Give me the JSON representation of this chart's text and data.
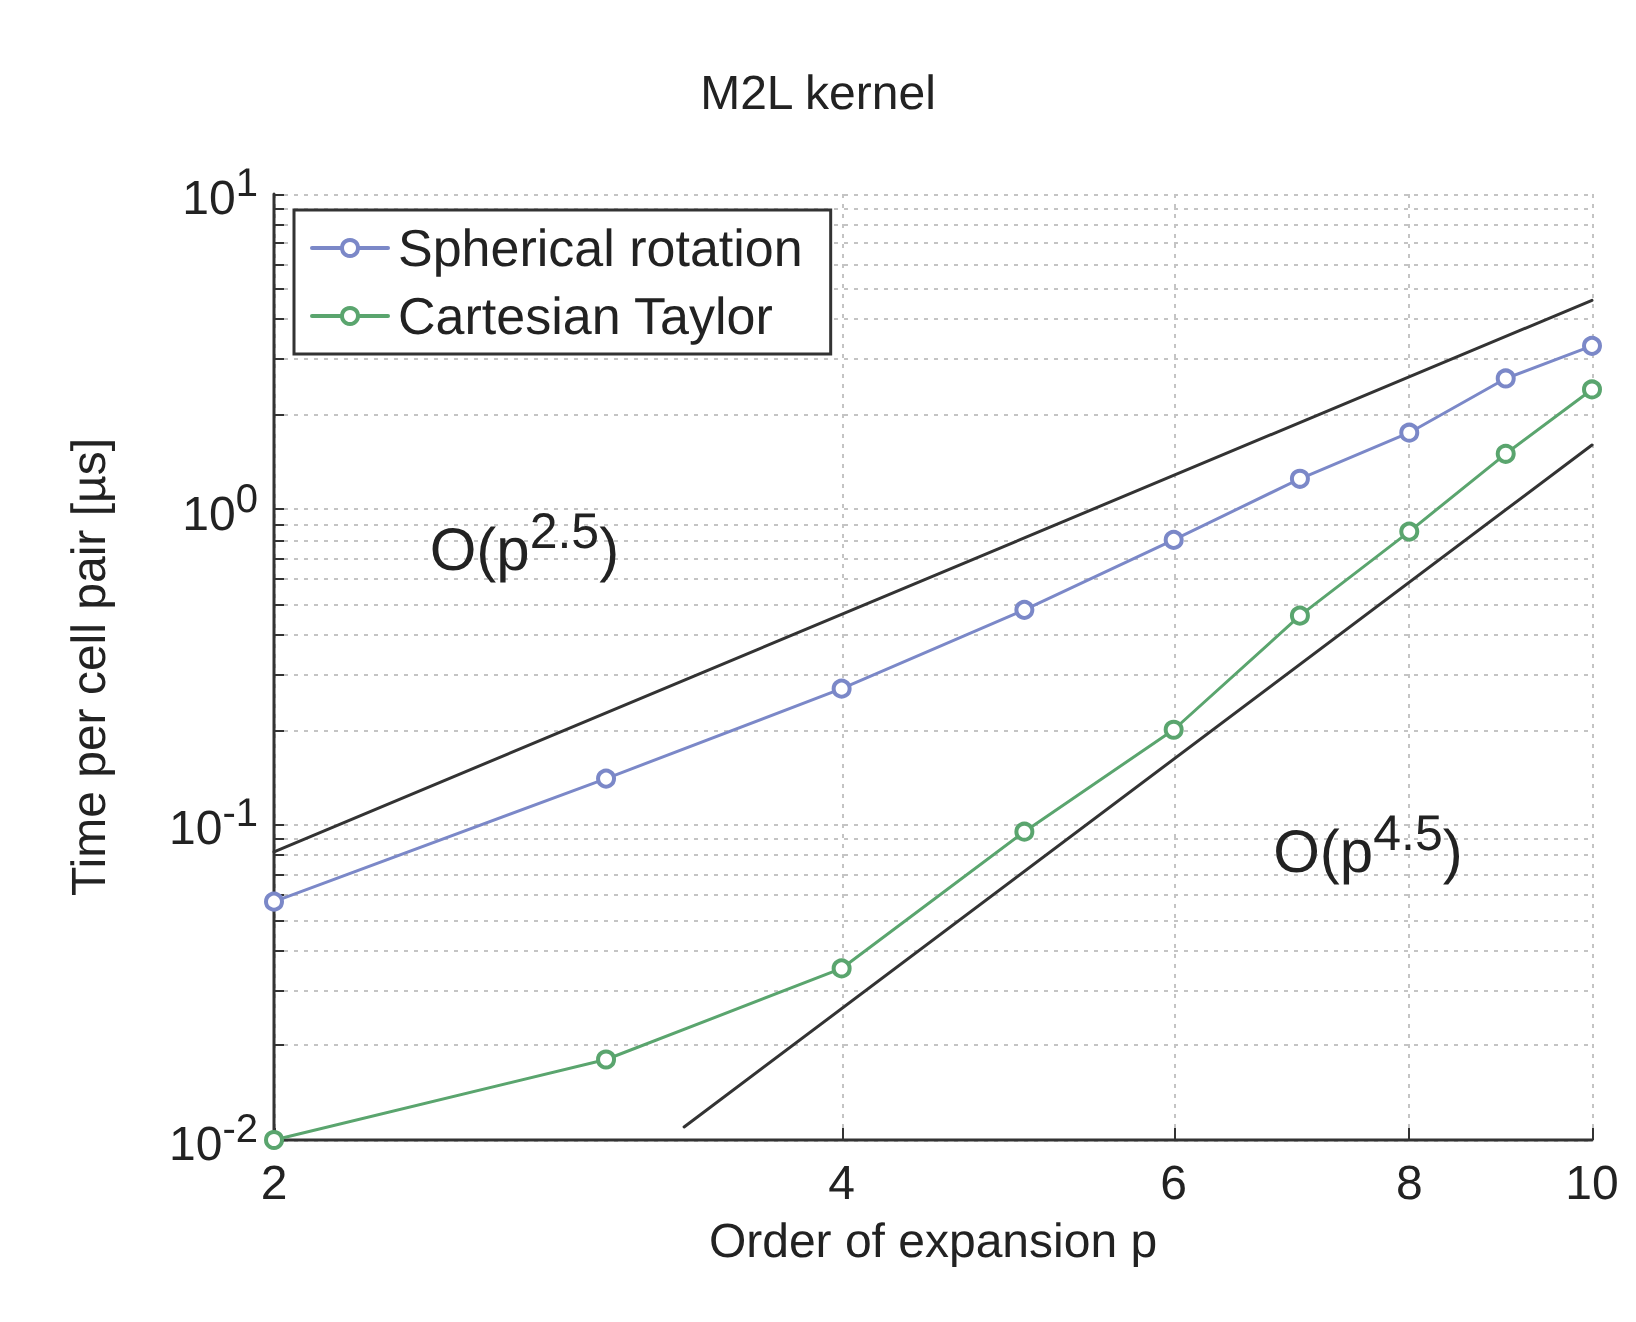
{
  "chart_data": {
    "type": "line",
    "title": "M2L kernel",
    "xlabel": "Order of expansion p",
    "ylabel": "Time per cell pair [µs]",
    "x": [
      2,
      3,
      4,
      5,
      6,
      7,
      8,
      9,
      10
    ],
    "series": [
      {
        "name": "Spherical rotation",
        "color": "#7b88c8",
        "values": [
          0.057,
          0.14,
          0.27,
          0.48,
          0.8,
          1.25,
          1.75,
          2.6,
          3.3
        ]
      },
      {
        "name": "Cartesian Taylor",
        "color": "#5aa56e",
        "values": [
          0.01,
          0.018,
          0.035,
          0.095,
          0.2,
          0.46,
          0.85,
          1.5,
          2.4
        ]
      },
      {
        "type": "line",
        "color": "#333333",
        "marker": "none",
        "x": [
          2,
          10
        ],
        "values": [
          0.082,
          4.6
        ]
      },
      {
        "type": "line",
        "color": "#333333",
        "marker": "none",
        "x": [
          3.3,
          10
        ],
        "values": [
          0.011,
          1.6
        ]
      }
    ],
    "annotations": [
      "O(p$^{2.5}$)",
      "O(p$^{4.5}$)"
    ],
    "log": "xy",
    "xlim": [
      2,
      10
    ],
    "xticks": [
      2,
      4,
      6,
      8,
      10
    ],
    "ylim": [
      0.01,
      10
    ],
    "yticks": [
      {
        "value": 0.01,
        "label": "10$^{-2}$"
      },
      {
        "value": 0.02,
        "label": null
      },
      {
        "value": 0.03,
        "label": null
      },
      {
        "value": 0.04,
        "label": null
      },
      {
        "value": 0.05,
        "label": null
      },
      {
        "value": 0.06,
        "label": null
      },
      {
        "value": 0.07,
        "label": null
      },
      {
        "value": 0.08,
        "label": null
      },
      {
        "value": 0.09,
        "label": null
      },
      {
        "value": 0.1,
        "label": "10$^{-1}$"
      },
      {
        "value": 0.2,
        "label": null
      },
      {
        "value": 0.3,
        "label": null
      },
      {
        "value": 0.4,
        "label": null
      },
      {
        "value": 0.5,
        "label": null
      },
      {
        "value": 0.6,
        "label": null
      },
      {
        "value": 0.7,
        "label": null
      },
      {
        "value": 0.8,
        "label": null
      },
      {
        "value": 0.9,
        "label": null
      },
      {
        "value": 1,
        "label": "10$^{0}$"
      },
      {
        "value": 2,
        "label": null
      },
      {
        "value": 3,
        "label": null
      },
      {
        "value": 4,
        "label": null
      },
      {
        "value": 5,
        "label": null
      },
      {
        "value": 6,
        "label": null
      },
      {
        "value": 7,
        "label": null
      },
      {
        "value": 8,
        "label": null
      },
      {
        "value": 9,
        "label": null
      },
      {
        "value": 10,
        "label": "10$^{1}$"
      }
    ],
    "grid": true,
    "legend": "top left",
    "marker": "circle",
    "line_style": "solid"
  }
}
